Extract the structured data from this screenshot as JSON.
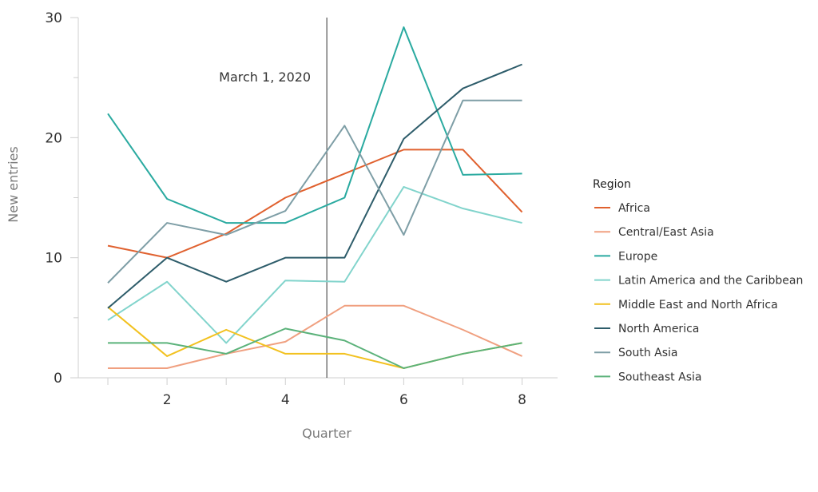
{
  "chart_data": {
    "type": "line",
    "xlabel": "Quarter",
    "ylabel": "New entries",
    "xlim": [
      0.5,
      8.6
    ],
    "ylim": [
      0,
      30
    ],
    "x": [
      1,
      2,
      3,
      4,
      5,
      6,
      7,
      8
    ],
    "x_ticks": [
      2,
      4,
      6,
      8
    ],
    "x_tick_labels": [
      "2",
      "4",
      "6",
      "8"
    ],
    "y_ticks": [
      0,
      10,
      20,
      30
    ],
    "y_tick_labels": [
      "0",
      "10",
      "20",
      "30"
    ],
    "y_minor_ticks": [
      5,
      15,
      25
    ],
    "grid": false,
    "annotation": {
      "text": "March 1, 2020",
      "x": 4.7
    },
    "legend": {
      "title": "Region",
      "placement": "right"
    },
    "series": [
      {
        "name": "Africa",
        "color": "#e0612f",
        "values": [
          11,
          10,
          12,
          15,
          17,
          19,
          19,
          13.8
        ]
      },
      {
        "name": "Central/East Asia",
        "color": "#f0a080",
        "values": [
          0.8,
          0.8,
          2,
          3,
          6,
          6,
          4,
          1.8
        ]
      },
      {
        "name": "Europe",
        "color": "#2aaaa0",
        "values": [
          22,
          14.9,
          12.9,
          12.9,
          15,
          29.2,
          16.9,
          17
        ]
      },
      {
        "name": "Latin America and the Caribbean",
        "color": "#82d4cc",
        "values": [
          4.8,
          8,
          2.9,
          8.1,
          8,
          15.9,
          14.1,
          12.9
        ]
      },
      {
        "name": "Middle East and North Africa",
        "color": "#f2c11f",
        "values": [
          5.9,
          1.8,
          4,
          2,
          2,
          0.8,
          2,
          2.9
        ]
      },
      {
        "name": "North America",
        "color": "#2d5c6a",
        "values": [
          5.8,
          10,
          8,
          10,
          10,
          19.9,
          24.1,
          26.1
        ]
      },
      {
        "name": "South Asia",
        "color": "#7e9ea6",
        "values": [
          7.9,
          12.9,
          11.9,
          13.9,
          21,
          11.9,
          23.1,
          23.1
        ]
      },
      {
        "name": "Southeast Asia",
        "color": "#5bb27a",
        "values": [
          2.9,
          2.9,
          2,
          4.1,
          3.1,
          0.8,
          2,
          2.9
        ]
      }
    ]
  }
}
